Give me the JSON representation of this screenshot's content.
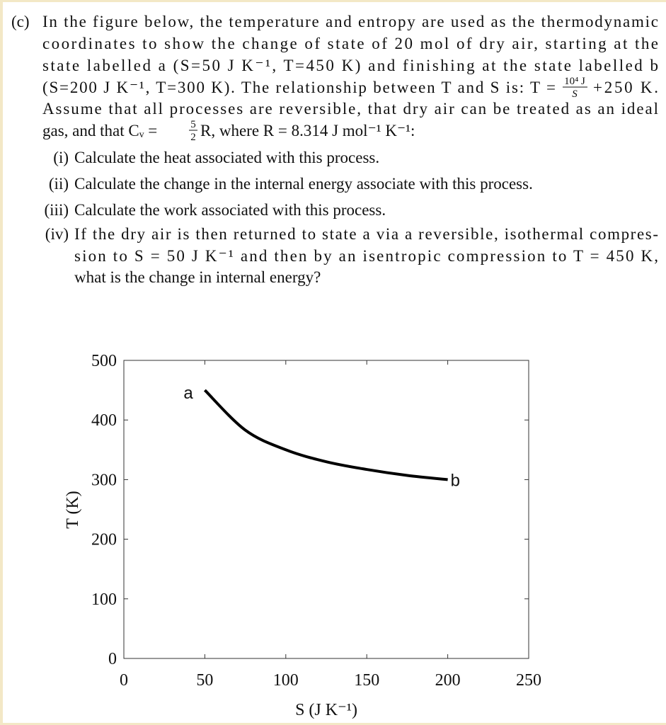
{
  "question": {
    "label": "(c)",
    "intro": [
      "In the figure below, the temperature and entropy are used as the thermodynamic",
      "coordinates to show the change of state of 20 mol of dry air, starting at the",
      "state labelled a (S=50 J K⁻¹, T=450 K) and finishing at the state labelled b",
      {
        "before": "(S=200 J K⁻¹, T=300 K). The relationship between T and S is: T =",
        "numerator": "10⁴ J",
        "denominator": "S",
        "after": "+250 K."
      },
      "Assume that all processes are reversible, that dry air can be treated as an ideal",
      {
        "before": "gas, and that Cᵥ =",
        "numerator": "5",
        "denominator": "2",
        "after": "R, where R = 8.314 J mol⁻¹ K⁻¹:"
      }
    ],
    "items": [
      {
        "label": "(i)",
        "lines": [
          "Calculate the heat associated with this process."
        ]
      },
      {
        "label": "(ii)",
        "lines": [
          "Calculate the change in the internal energy associate with this process."
        ]
      },
      {
        "label": "(iii)",
        "lines": [
          "Calculate the work associated with this process."
        ]
      },
      {
        "label": "(iv)",
        "lines": [
          "If the dry air is then returned to state a via a reversible, isothermal compres-",
          "sion to S = 50 J K⁻¹ and then by an isentropic compression to T = 450 K,",
          "what is the change in internal energy?"
        ]
      }
    ]
  },
  "chart_data": {
    "type": "line",
    "x_label": "S (J K⁻¹)",
    "y_label": "T (K)",
    "x": [
      50,
      75,
      100,
      125,
      150,
      175,
      200
    ],
    "values": [
      450,
      383,
      350,
      330,
      317,
      307,
      300
    ],
    "color": "#000000",
    "annotations": [
      "a",
      "b"
    ],
    "xlim": [
      0,
      250
    ],
    "ylim": [
      0,
      500
    ],
    "xticks": [
      0,
      50,
      100,
      150,
      200,
      250
    ],
    "yticks": [
      0,
      100,
      200,
      300,
      400,
      500
    ],
    "grid": false
  }
}
